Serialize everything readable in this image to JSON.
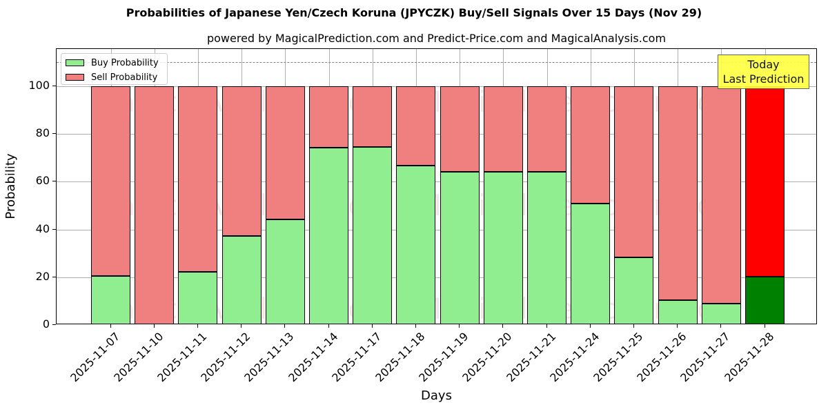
{
  "title": "Probabilities of Japanese Yen/Czech Koruna (JPYCZK) Buy/Sell Signals Over 15 Days (Nov 29)",
  "subtitle": "powered by MagicalPrediction.com and Predict-Price.com and MagicalAnalysis.com",
  "legend": {
    "buy_label": "Buy Probability",
    "sell_label": "Sell Probability"
  },
  "annotation": {
    "line1": "Today",
    "line2": "Last Prediction"
  },
  "watermarks": [
    "MagicalAnalysis.com",
    "MagicalPrediction.com"
  ],
  "colors": {
    "buy": "#90ee90",
    "sell": "#f08080",
    "today_buy": "#008000",
    "today_sell": "#ff0000",
    "annotation_bg": "#ffff44"
  },
  "chart_data": {
    "type": "bar",
    "stacked": true,
    "title": "Probabilities of Japanese Yen/Czech Koruna (JPYCZK) Buy/Sell Signals Over 15 Days (Nov 29)",
    "subtitle": "powered by MagicalPrediction.com and Predict-Price.com and MagicalAnalysis.com",
    "xlabel": "Days",
    "ylabel": "Probability",
    "ylim": [
      0,
      115
    ],
    "yticks": [
      0,
      20,
      40,
      60,
      80,
      100
    ],
    "grid": true,
    "legend_position": "upper left",
    "reference_line": {
      "y": 110,
      "style": "dashed",
      "color": "#808080"
    },
    "categories": [
      "2025-11-07",
      "2025-11-10",
      "2025-11-11",
      "2025-11-12",
      "2025-11-13",
      "2025-11-14",
      "2025-11-17",
      "2025-11-18",
      "2025-11-19",
      "2025-11-20",
      "2025-11-21",
      "2025-11-24",
      "2025-11-25",
      "2025-11-26",
      "2025-11-27",
      "2025-11-28"
    ],
    "series": [
      {
        "name": "Buy Probability",
        "values": [
          20.5,
          0,
          22.2,
          37.4,
          44.1,
          74.4,
          74.7,
          66.7,
          64.1,
          64.1,
          64.1,
          50.8,
          28.2,
          10.3,
          9.0,
          20.3
        ]
      },
      {
        "name": "Sell Probability",
        "values": [
          79.5,
          100,
          77.8,
          62.6,
          55.9,
          25.6,
          25.3,
          33.3,
          35.9,
          35.9,
          35.9,
          49.2,
          71.8,
          89.7,
          91.0,
          79.7
        ]
      }
    ],
    "highlighted_category": "2025-11-28",
    "annotation": "Today\nLast Prediction"
  }
}
